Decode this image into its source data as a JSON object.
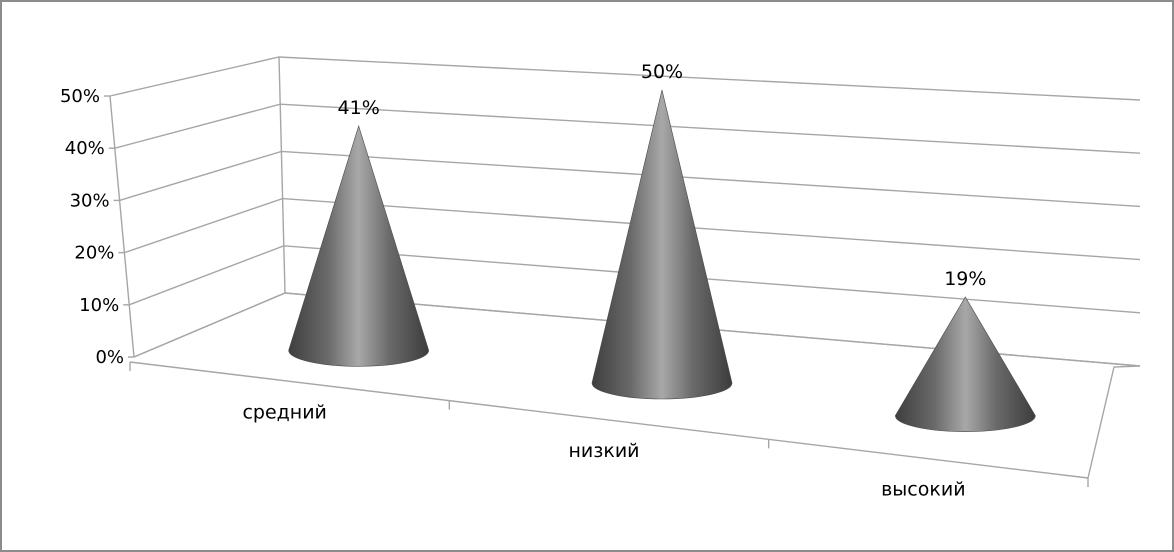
{
  "chart_data": {
    "type": "bar",
    "style": "3d-cone",
    "categories": [
      "средний",
      "низкий",
      "высокий"
    ],
    "values": [
      41,
      50,
      19
    ],
    "data_labels": [
      "41%",
      "50%",
      "19%"
    ],
    "y_ticks": [
      "0%",
      "10%",
      "20%",
      "30%",
      "40%",
      "50%"
    ],
    "ylim": [
      0,
      50
    ],
    "grid": true,
    "legend": "none",
    "colors": {
      "cone_dark": "#3e3e3e",
      "cone_light": "#a5a5a5",
      "grid": "#a6a6a6",
      "frame": "#8c8c8c"
    }
  }
}
